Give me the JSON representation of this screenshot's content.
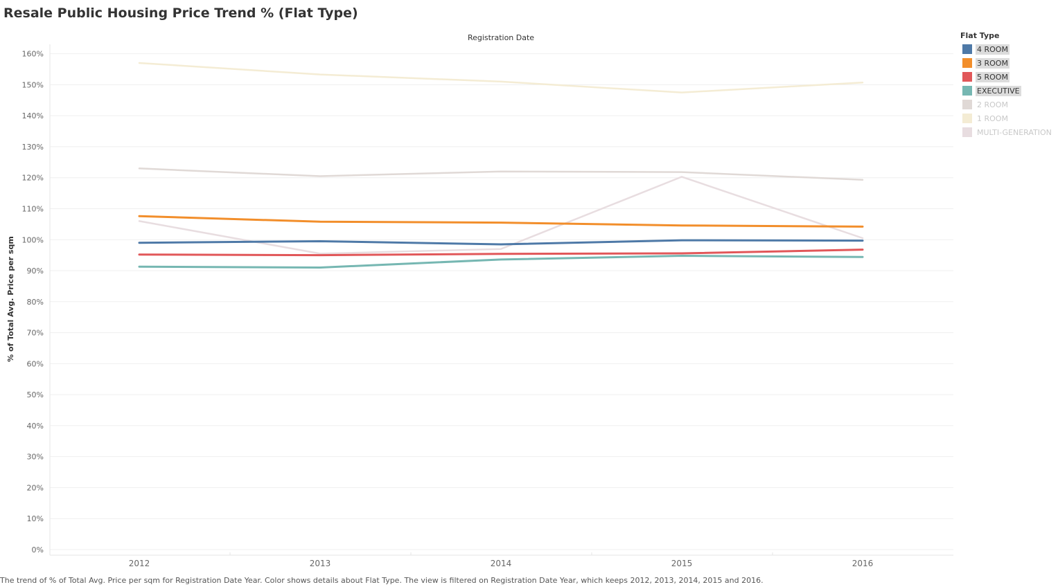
{
  "title": "Resale Public Housing Price Trend % (Flat Type)",
  "caption": "The trend of % of Total Avg. Price per sqm for Registration Date Year.  Color shows details about Flat Type. The view is filtered on Registration Date Year, which keeps 2012, 2013, 2014, 2015 and 2016.",
  "legend": {
    "title": "Flat Type",
    "items": [
      {
        "label": "4 ROOM",
        "color": "#4e79a7",
        "state": "highlighted"
      },
      {
        "label": "3 ROOM",
        "color": "#f28e2b",
        "state": "highlighted"
      },
      {
        "label": "5 ROOM",
        "color": "#e15759",
        "state": "highlighted"
      },
      {
        "label": "EXECUTIVE",
        "color": "#76b7b2",
        "state": "highlighted"
      },
      {
        "label": "2 ROOM",
        "color": "#e0d9d6",
        "state": "faded"
      },
      {
        "label": "1 ROOM",
        "color": "#f4ecd4",
        "state": "faded"
      },
      {
        "label": "MULTI-GENERATION",
        "color": "#e8dde0",
        "state": "faded"
      }
    ]
  },
  "chart_data": {
    "type": "line",
    "title": "Resale Public Housing Price Trend % (Flat Type)",
    "xlabel": "Registration Date",
    "ylabel": "% of Total Avg. Price per sqm",
    "x": [
      "2012",
      "2013",
      "2014",
      "2015",
      "2016"
    ],
    "y_ticks": [
      "0%",
      "10%",
      "20%",
      "30%",
      "40%",
      "50%",
      "60%",
      "70%",
      "80%",
      "90%",
      "100%",
      "110%",
      "120%",
      "130%",
      "140%",
      "150%",
      "160%"
    ],
    "ylim": [
      0,
      160
    ],
    "grid": true,
    "legend_position": "right",
    "series": [
      {
        "name": "1 ROOM",
        "color": "#f4ecd4",
        "highlighted": false,
        "values": [
          157,
          153.3,
          151,
          147.5,
          150.7
        ]
      },
      {
        "name": "2 ROOM",
        "color": "#e0d9d6",
        "highlighted": false,
        "values": [
          123,
          120.5,
          122,
          121.8,
          119.3
        ]
      },
      {
        "name": "MULTI-GENERATION",
        "color": "#e8dde0",
        "highlighted": false,
        "values": [
          106,
          95.5,
          97,
          120.3,
          100.5
        ]
      },
      {
        "name": "EXECUTIVE",
        "color": "#76b7b2",
        "highlighted": true,
        "values": [
          91.3,
          91,
          93.6,
          94.8,
          94.4
        ]
      },
      {
        "name": "5 ROOM",
        "color": "#e15759",
        "highlighted": true,
        "values": [
          95.2,
          95,
          95.4,
          95.6,
          96.8
        ]
      },
      {
        "name": "4 ROOM",
        "color": "#4e79a7",
        "highlighted": true,
        "values": [
          99,
          99.5,
          98.5,
          99.8,
          99.7
        ]
      },
      {
        "name": "3 ROOM",
        "color": "#f28e2b",
        "highlighted": true,
        "values": [
          107.6,
          105.8,
          105.5,
          104.6,
          104.2
        ]
      }
    ]
  }
}
